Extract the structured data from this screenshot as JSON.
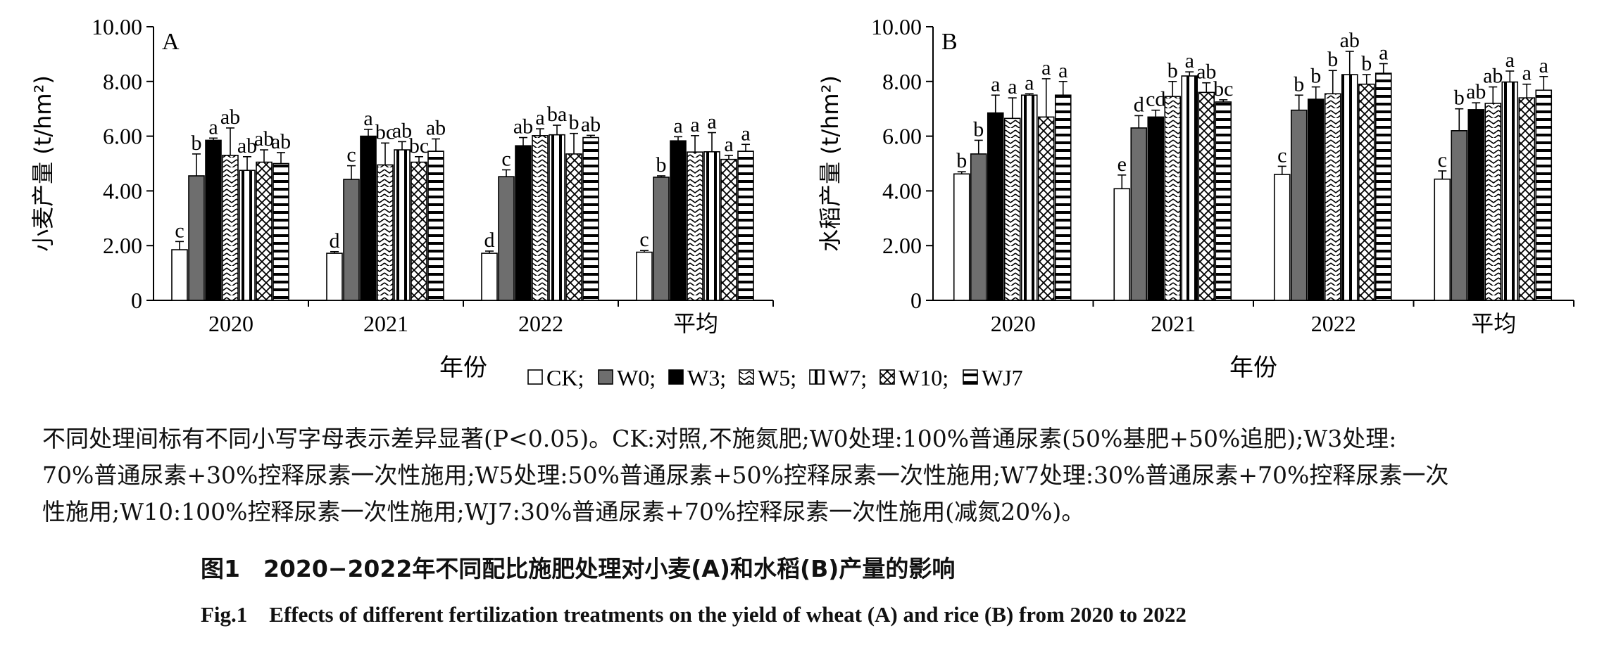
{
  "legend": {
    "items": [
      {
        "label": "CK;",
        "pattern": "white"
      },
      {
        "label": "W0;",
        "pattern": "gray"
      },
      {
        "label": "W3;",
        "pattern": "black"
      },
      {
        "label": "W5;",
        "pattern": "wave"
      },
      {
        "label": "W7;",
        "pattern": "vline"
      },
      {
        "label": "W10;",
        "pattern": "cross"
      },
      {
        "label": "WJ7",
        "pattern": "hline"
      }
    ]
  },
  "chart_data": [
    {
      "type": "bar",
      "panel_label": "A",
      "xlabel": "年份",
      "ylabel": "小麦产量 (t/hm²)",
      "ylim": [
        0,
        10
      ],
      "yticks": [
        "0",
        "2.00",
        "4.00",
        "6.00",
        "8.00",
        "10.00"
      ],
      "categories": [
        "2020",
        "2021",
        "2022",
        "平均"
      ],
      "series": [
        {
          "name": "CK",
          "values": [
            1.85,
            1.72,
            1.72,
            1.76
          ],
          "errors": [
            0.3,
            0.06,
            0.08,
            0.06
          ],
          "letters": [
            "c",
            "d",
            "d",
            "c"
          ]
        },
        {
          "name": "W0",
          "values": [
            4.55,
            4.42,
            4.52,
            4.5
          ],
          "errors": [
            0.8,
            0.5,
            0.25,
            0.05
          ],
          "letters": [
            "b",
            "c",
            "c",
            "b"
          ]
        },
        {
          "name": "W3",
          "values": [
            5.85,
            6.0,
            5.65,
            5.83
          ],
          "errors": [
            0.08,
            0.25,
            0.3,
            0.15
          ],
          "letters": [
            "a",
            "a",
            "ab",
            "a"
          ]
        },
        {
          "name": "W5",
          "values": [
            5.3,
            4.95,
            6.02,
            5.42
          ],
          "errors": [
            1.0,
            0.8,
            0.25,
            0.6
          ],
          "letters": [
            "ab",
            "bc",
            "a",
            "a"
          ]
        },
        {
          "name": "W7",
          "values": [
            4.75,
            5.5,
            6.05,
            5.43
          ],
          "errors": [
            0.5,
            0.3,
            0.35,
            0.7
          ],
          "letters": [
            "ab",
            "ab",
            "ba",
            "a"
          ]
        },
        {
          "name": "W10",
          "values": [
            5.05,
            5.05,
            5.35,
            5.15
          ],
          "errors": [
            0.45,
            0.2,
            0.75,
            0.15
          ],
          "letters": [
            "ab",
            "bc",
            "b",
            "a"
          ]
        },
        {
          "name": "WJ7",
          "values": [
            5.0,
            5.45,
            5.95,
            5.45
          ],
          "errors": [
            0.4,
            0.45,
            0.08,
            0.25
          ],
          "letters": [
            "ab",
            "ab",
            "ab",
            "a"
          ]
        }
      ]
    },
    {
      "type": "bar",
      "panel_label": "B",
      "xlabel": "年份",
      "ylabel": "水稻产量 (t/hm²)",
      "ylim": [
        0,
        10
      ],
      "yticks": [
        "0",
        "2.00",
        "4.00",
        "6.00",
        "8.00",
        "10.00"
      ],
      "categories": [
        "2020",
        "2021",
        "2022",
        "平均"
      ],
      "series": [
        {
          "name": "CK",
          "values": [
            4.62,
            4.08,
            4.6,
            4.43
          ],
          "errors": [
            0.08,
            0.5,
            0.3,
            0.3
          ],
          "letters": [
            "b",
            "e",
            "c",
            "c"
          ]
        },
        {
          "name": "W0",
          "values": [
            5.35,
            6.3,
            6.95,
            6.2
          ],
          "errors": [
            0.5,
            0.45,
            0.55,
            0.8
          ],
          "letters": [
            "b",
            "d",
            "b",
            "b"
          ]
        },
        {
          "name": "W3",
          "values": [
            6.85,
            6.7,
            7.35,
            6.97
          ],
          "errors": [
            0.65,
            0.25,
            0.45,
            0.25
          ],
          "letters": [
            "a",
            "cd",
            "b",
            "ab"
          ]
        },
        {
          "name": "W5",
          "values": [
            6.65,
            7.45,
            7.55,
            7.2
          ],
          "errors": [
            0.75,
            0.55,
            0.85,
            0.6
          ],
          "letters": [
            "a",
            "b",
            "b",
            "ab"
          ]
        },
        {
          "name": "W7",
          "values": [
            7.5,
            8.2,
            8.25,
            7.98
          ],
          "errors": [
            0.05,
            0.15,
            0.85,
            0.4
          ],
          "letters": [
            "a",
            "a",
            "ab",
            "a"
          ]
        },
        {
          "name": "W10",
          "values": [
            6.7,
            7.6,
            7.9,
            7.4
          ],
          "errors": [
            1.4,
            0.35,
            0.35,
            0.5
          ],
          "letters": [
            "a",
            "ab",
            "b",
            "a"
          ]
        },
        {
          "name": "WJ7",
          "values": [
            7.5,
            7.25,
            8.3,
            7.68
          ],
          "errors": [
            0.5,
            0.08,
            0.35,
            0.5
          ],
          "letters": [
            "a",
            "bc",
            "a",
            "a"
          ]
        }
      ]
    }
  ],
  "footnote": {
    "line1": "不同处理间标有不同小写字母表示差异显著(P<0.05)。CK:对照,不施氮肥;W0处理:100%普通尿素(50%基肥+50%追肥);W3处理:",
    "line2": "70%普通尿素+30%控释尿素一次性施用;W5处理:50%普通尿素+50%控释尿素一次性施用;W7处理:30%普通尿素+70%控释尿素一次",
    "line3": "性施用;W10:100%控释尿素一次性施用;WJ7:30%普通尿素+70%控释尿素一次性施用(减氮20%)。"
  },
  "caption": {
    "cn": "图1　2020−2022年不同配比施肥处理对小麦(A)和水稻(B)产量的影响",
    "en": "Fig.1　Effects of different fertilization treatments on the yield of wheat (A) and rice (B) from 2020 to 2022"
  }
}
